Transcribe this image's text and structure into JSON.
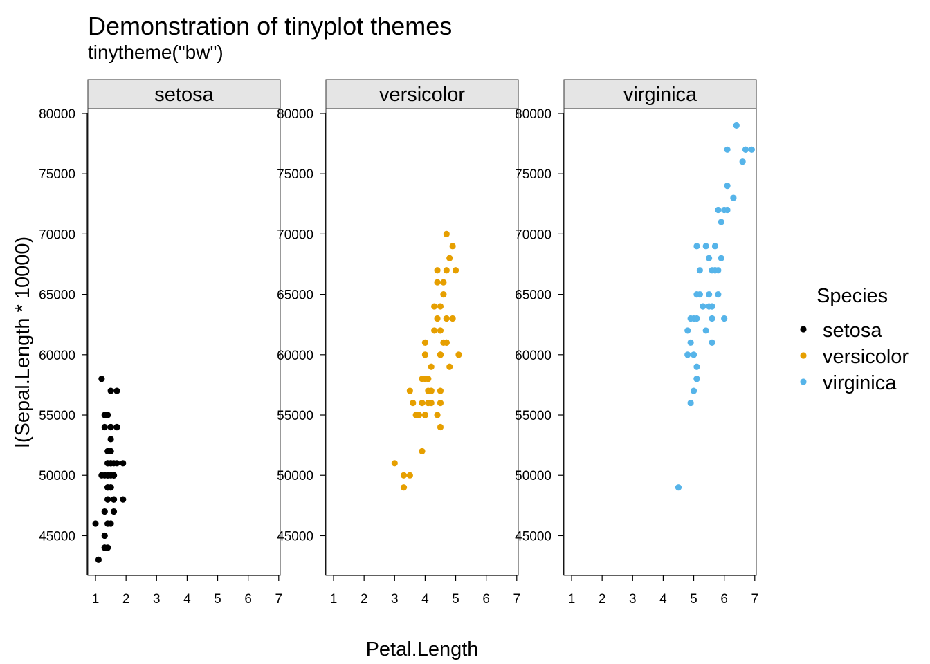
{
  "chart_data": {
    "type": "scatter",
    "title": "Demonstration of tinyplot themes",
    "subtitle": "tinytheme(\"bw\")",
    "xlabel": "Petal.Length",
    "ylabel": "I(Sepal.Length * 10000)",
    "xlim": [
      0.75,
      7.05
    ],
    "ylim": [
      41700,
      80400
    ],
    "xticks": [
      1,
      2,
      3,
      4,
      5,
      6,
      7
    ],
    "yticks": [
      45000,
      50000,
      55000,
      60000,
      65000,
      70000,
      75000,
      80000
    ],
    "legend": {
      "title": "Species",
      "position": "right"
    },
    "facets": [
      {
        "name": "setosa",
        "color": "#000000",
        "points": [
          [
            1.4,
            51000
          ],
          [
            1.4,
            49000
          ],
          [
            1.3,
            47000
          ],
          [
            1.5,
            46000
          ],
          [
            1.4,
            50000
          ],
          [
            1.7,
            54000
          ],
          [
            1.4,
            46000
          ],
          [
            1.5,
            50000
          ],
          [
            1.4,
            44000
          ],
          [
            1.5,
            49000
          ],
          [
            1.5,
            54000
          ],
          [
            1.6,
            48000
          ],
          [
            1.4,
            48000
          ],
          [
            1.1,
            43000
          ],
          [
            1.2,
            58000
          ],
          [
            1.5,
            57000
          ],
          [
            1.3,
            54000
          ],
          [
            1.4,
            51000
          ],
          [
            1.7,
            57000
          ],
          [
            1.5,
            51000
          ],
          [
            1.7,
            54000
          ],
          [
            1.5,
            51000
          ],
          [
            1.0,
            46000
          ],
          [
            1.7,
            51000
          ],
          [
            1.9,
            48000
          ],
          [
            1.6,
            50000
          ],
          [
            1.6,
            50000
          ],
          [
            1.5,
            52000
          ],
          [
            1.4,
            52000
          ],
          [
            1.6,
            47000
          ],
          [
            1.6,
            48000
          ],
          [
            1.5,
            54000
          ],
          [
            1.5,
            52000
          ],
          [
            1.4,
            55000
          ],
          [
            1.5,
            49000
          ],
          [
            1.2,
            50000
          ],
          [
            1.3,
            55000
          ],
          [
            1.4,
            49000
          ],
          [
            1.3,
            44000
          ],
          [
            1.5,
            51000
          ],
          [
            1.3,
            50000
          ],
          [
            1.3,
            45000
          ],
          [
            1.3,
            44000
          ],
          [
            1.6,
            50000
          ],
          [
            1.9,
            51000
          ],
          [
            1.4,
            48000
          ],
          [
            1.6,
            51000
          ],
          [
            1.4,
            46000
          ],
          [
            1.5,
            53000
          ],
          [
            1.4,
            50000
          ]
        ]
      },
      {
        "name": "versicolor",
        "color": "#E69F00",
        "points": [
          [
            4.7,
            70000
          ],
          [
            4.5,
            64000
          ],
          [
            4.9,
            69000
          ],
          [
            4.0,
            55000
          ],
          [
            4.6,
            65000
          ],
          [
            4.5,
            57000
          ],
          [
            4.7,
            63000
          ],
          [
            3.3,
            49000
          ],
          [
            4.6,
            66000
          ],
          [
            3.9,
            52000
          ],
          [
            3.5,
            50000
          ],
          [
            4.2,
            59000
          ],
          [
            4.0,
            60000
          ],
          [
            4.7,
            61000
          ],
          [
            3.6,
            56000
          ],
          [
            4.4,
            67000
          ],
          [
            4.5,
            56000
          ],
          [
            4.1,
            58000
          ],
          [
            4.5,
            62000
          ],
          [
            3.9,
            56000
          ],
          [
            4.8,
            59000
          ],
          [
            4.0,
            61000
          ],
          [
            4.9,
            63000
          ],
          [
            4.7,
            61000
          ],
          [
            4.3,
            64000
          ],
          [
            4.4,
            66000
          ],
          [
            4.8,
            68000
          ],
          [
            5.0,
            67000
          ],
          [
            4.5,
            60000
          ],
          [
            3.5,
            57000
          ],
          [
            3.8,
            55000
          ],
          [
            3.7,
            55000
          ],
          [
            3.9,
            58000
          ],
          [
            5.1,
            60000
          ],
          [
            4.5,
            54000
          ],
          [
            4.5,
            60000
          ],
          [
            4.7,
            67000
          ],
          [
            4.4,
            63000
          ],
          [
            4.1,
            56000
          ],
          [
            4.0,
            55000
          ],
          [
            4.4,
            55000
          ],
          [
            4.6,
            61000
          ],
          [
            4.0,
            58000
          ],
          [
            3.3,
            50000
          ],
          [
            4.2,
            56000
          ],
          [
            4.2,
            57000
          ],
          [
            4.2,
            57000
          ],
          [
            4.3,
            62000
          ],
          [
            3.0,
            51000
          ],
          [
            4.1,
            57000
          ]
        ]
      },
      {
        "name": "virginica",
        "color": "#56B4E9",
        "points": [
          [
            6.0,
            63000
          ],
          [
            5.1,
            58000
          ],
          [
            5.9,
            71000
          ],
          [
            5.6,
            63000
          ],
          [
            5.8,
            65000
          ],
          [
            6.6,
            76000
          ],
          [
            4.5,
            49000
          ],
          [
            6.3,
            73000
          ],
          [
            5.8,
            67000
          ],
          [
            6.1,
            72000
          ],
          [
            5.1,
            65000
          ],
          [
            5.3,
            64000
          ],
          [
            5.5,
            68000
          ],
          [
            5.0,
            57000
          ],
          [
            5.1,
            58000
          ],
          [
            5.3,
            64000
          ],
          [
            5.5,
            65000
          ],
          [
            6.7,
            77000
          ],
          [
            6.9,
            77000
          ],
          [
            5.0,
            60000
          ],
          [
            5.7,
            69000
          ],
          [
            4.9,
            56000
          ],
          [
            6.7,
            77000
          ],
          [
            4.9,
            63000
          ],
          [
            5.7,
            67000
          ],
          [
            6.0,
            72000
          ],
          [
            4.8,
            62000
          ],
          [
            4.9,
            61000
          ],
          [
            5.6,
            64000
          ],
          [
            5.8,
            72000
          ],
          [
            6.1,
            74000
          ],
          [
            6.4,
            79000
          ],
          [
            5.6,
            64000
          ],
          [
            5.1,
            63000
          ],
          [
            5.6,
            61000
          ],
          [
            6.1,
            77000
          ],
          [
            5.6,
            63000
          ],
          [
            5.5,
            64000
          ],
          [
            4.8,
            60000
          ],
          [
            5.4,
            69000
          ],
          [
            5.6,
            67000
          ],
          [
            5.1,
            69000
          ],
          [
            5.1,
            58000
          ],
          [
            5.9,
            68000
          ],
          [
            5.7,
            67000
          ],
          [
            5.2,
            67000
          ],
          [
            5.0,
            63000
          ],
          [
            5.2,
            65000
          ],
          [
            5.4,
            62000
          ],
          [
            5.1,
            59000
          ]
        ]
      }
    ]
  }
}
